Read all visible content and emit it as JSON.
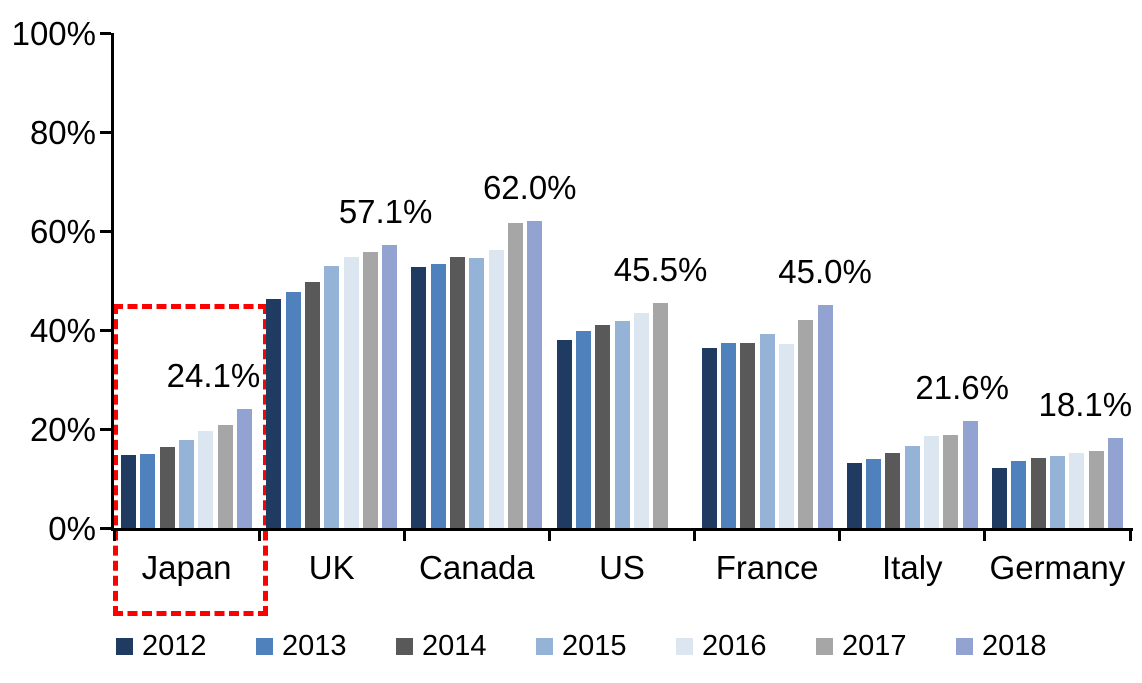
{
  "chart_data": {
    "type": "bar",
    "title": "",
    "xlabel": "",
    "ylabel": "",
    "ylim": [
      0,
      100
    ],
    "yticks": [
      "0%",
      "20%",
      "40%",
      "60%",
      "80%",
      "100%"
    ],
    "grid": false,
    "legend_position": "bottom",
    "categories": [
      "Japan",
      "UK",
      "Canada",
      "US",
      "France",
      "Italy",
      "Germany"
    ],
    "series": [
      {
        "name": "2012",
        "color": "#1F3B62",
        "values": [
          14.7,
          46.3,
          52.7,
          38.0,
          36.4,
          13.1,
          12.1
        ]
      },
      {
        "name": "2013",
        "color": "#4F81BD",
        "values": [
          15.0,
          47.7,
          53.3,
          39.8,
          37.4,
          13.9,
          13.5
        ]
      },
      {
        "name": "2014",
        "color": "#595959",
        "values": [
          16.4,
          49.7,
          54.7,
          41.0,
          37.4,
          15.2,
          14.1
        ]
      },
      {
        "name": "2015",
        "color": "#95B3D7",
        "values": [
          17.8,
          52.9,
          54.5,
          41.8,
          39.2,
          16.6,
          14.5
        ]
      },
      {
        "name": "2016",
        "color": "#DCE6F1",
        "values": [
          19.6,
          54.7,
          56.2,
          43.4,
          37.2,
          18.6,
          15.2
        ]
      },
      {
        "name": "2017",
        "color": "#A6A6A6",
        "values": [
          20.8,
          55.8,
          61.6,
          45.5,
          42.0,
          18.8,
          15.6
        ]
      },
      {
        "name": "2018",
        "color": "#92A3D1",
        "values": [
          24.1,
          57.1,
          62.0,
          null,
          45.0,
          21.6,
          18.1
        ]
      }
    ],
    "annotations": [
      {
        "category": "Japan",
        "text": "24.1%"
      },
      {
        "category": "UK",
        "text": "57.1%"
      },
      {
        "category": "Canada",
        "text": "62.0%"
      },
      {
        "category": "US",
        "text": "45.5%"
      },
      {
        "category": "France",
        "text": "45.0%"
      },
      {
        "category": "Italy",
        "text": "21.6%"
      },
      {
        "category": "Germany",
        "text": "18.1%"
      }
    ],
    "highlight": {
      "category": "Japan",
      "style": "dashed-box",
      "color": "#FF0000"
    },
    "axis_color": "#000000",
    "label_color": "#000000"
  }
}
